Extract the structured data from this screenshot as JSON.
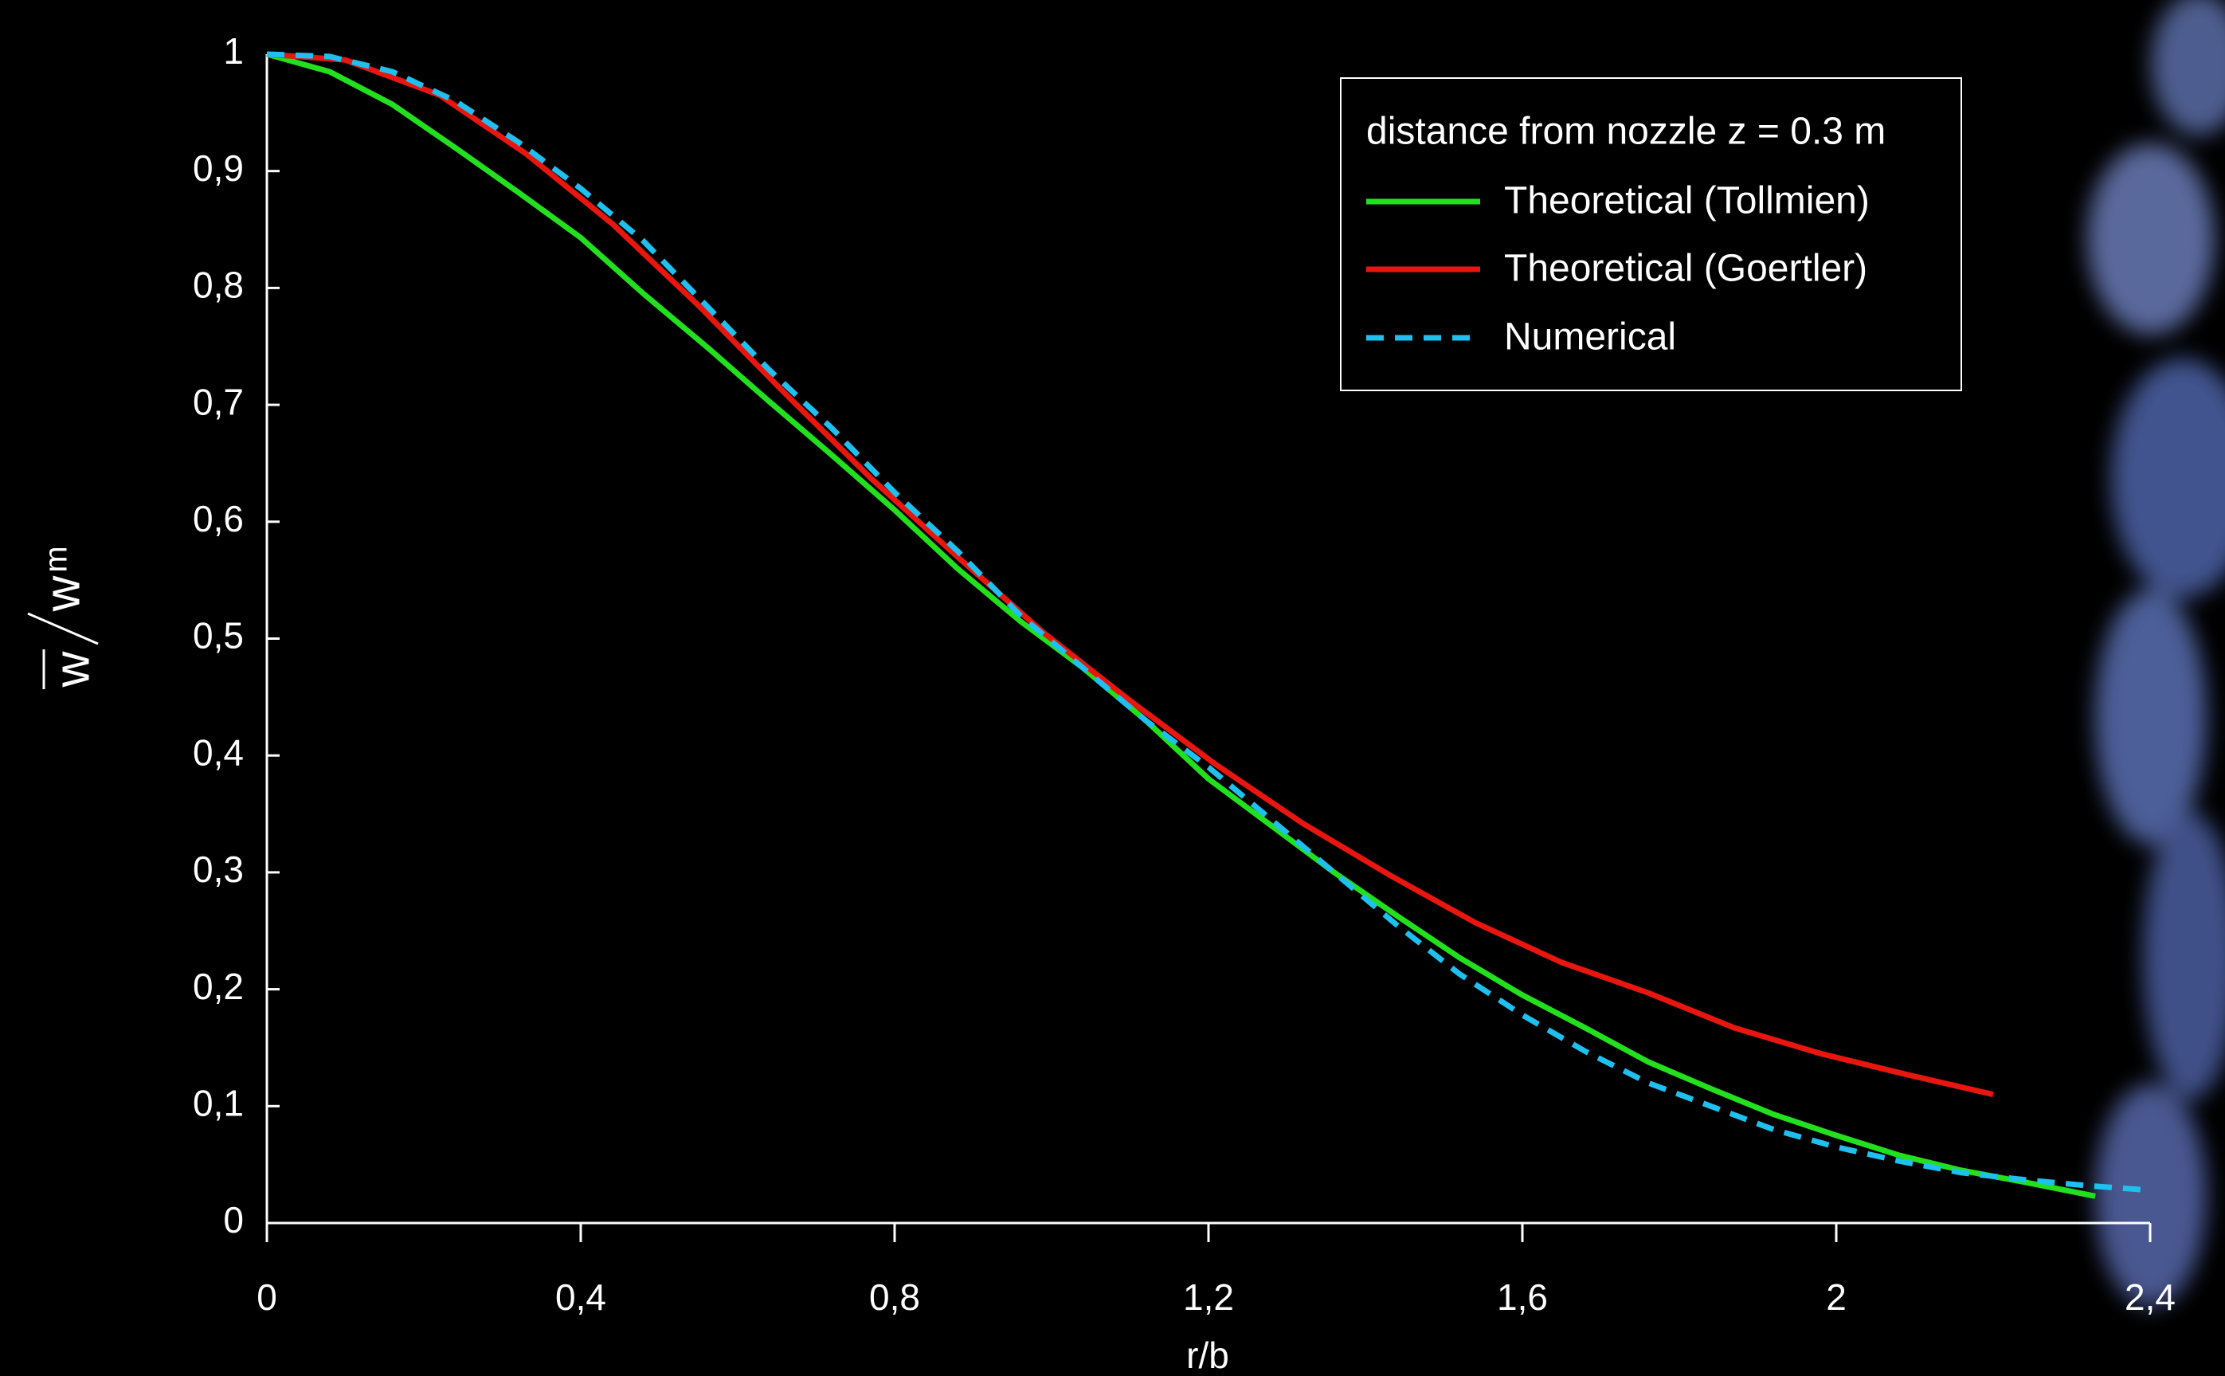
{
  "chart_data": {
    "type": "line",
    "x_label": "r/b",
    "y_label_numerator": "w",
    "y_label_denominator": "w",
    "y_label_subscript": "m",
    "legend_title": "distance from nozzle z = 0.3 m",
    "legend": "top-right",
    "grid": false,
    "xlim": [
      0,
      2.4
    ],
    "ylim": [
      0,
      1
    ],
    "xticks": [
      0,
      {
        "value": 0.4,
        "label": "0,4"
      },
      {
        "value": 0.8,
        "label": "0,8"
      },
      {
        "value": 1.2,
        "label": "1,2"
      },
      {
        "value": 1.6,
        "label": "1,6"
      },
      2,
      {
        "value": 2.4,
        "label": "2,4"
      }
    ],
    "yticks": [
      0,
      {
        "value": 0.1,
        "label": "0,1"
      },
      {
        "value": 0.2,
        "label": "0,2"
      },
      {
        "value": 0.3,
        "label": "0,3"
      },
      {
        "value": 0.4,
        "label": "0,4"
      },
      {
        "value": 0.5,
        "label": "0,5"
      },
      {
        "value": 0.6,
        "label": "0,6"
      },
      {
        "value": 0.7,
        "label": "0,7"
      },
      {
        "value": 0.8,
        "label": "0,8"
      },
      {
        "value": 0.9,
        "label": "0,9"
      },
      1
    ],
    "series": [
      {
        "name": "Theoretical (Tollmien)",
        "color": "#22e01e",
        "dash": false,
        "x": [
          0,
          0.08,
          0.16,
          0.24,
          0.32,
          0.4,
          0.48,
          0.56,
          0.64,
          0.72,
          0.8,
          0.88,
          0.96,
          1.04,
          1.12,
          1.2,
          1.28,
          1.36,
          1.44,
          1.52,
          1.6,
          1.68,
          1.76,
          1.84,
          1.92,
          2.0,
          2.08,
          2.16,
          2.24,
          2.33
        ],
        "values": [
          1,
          0.985,
          0.957,
          0.92,
          0.882,
          0.843,
          0.795,
          0.75,
          0.703,
          0.657,
          0.61,
          0.56,
          0.515,
          0.475,
          0.43,
          0.38,
          0.34,
          0.3,
          0.263,
          0.227,
          0.195,
          0.167,
          0.138,
          0.115,
          0.093,
          0.075,
          0.058,
          0.045,
          0.035,
          0.023
        ]
      },
      {
        "name": "Theoretical (Goertler)",
        "color": "#e8160f",
        "dash": false,
        "x": [
          0,
          0.1,
          0.22,
          0.33,
          0.44,
          0.55,
          0.66,
          0.77,
          0.88,
          0.99,
          1.1,
          1.21,
          1.32,
          1.43,
          1.54,
          1.65,
          1.76,
          1.87,
          1.98,
          2.09,
          2.2
        ],
        "values": [
          1,
          0.995,
          0.965,
          0.915,
          0.855,
          0.785,
          0.71,
          0.637,
          0.57,
          0.505,
          0.447,
          0.392,
          0.342,
          0.298,
          0.257,
          0.223,
          0.197,
          0.167,
          0.145,
          0.127,
          0.11
        ]
      },
      {
        "name": "Numerical",
        "color": "#1ec0ef",
        "dash": true,
        "x": [
          0,
          0.08,
          0.16,
          0.24,
          0.32,
          0.4,
          0.48,
          0.56,
          0.64,
          0.72,
          0.8,
          0.88,
          0.96,
          1.04,
          1.12,
          1.2,
          1.28,
          1.36,
          1.44,
          1.52,
          1.6,
          1.68,
          1.76,
          1.84,
          1.92,
          2.0,
          2.08,
          2.16,
          2.24,
          2.32,
          2.4
        ],
        "values": [
          1,
          0.998,
          0.985,
          0.96,
          0.925,
          0.885,
          0.84,
          0.785,
          0.73,
          0.68,
          0.625,
          0.575,
          0.52,
          0.475,
          0.43,
          0.39,
          0.345,
          0.3,
          0.255,
          0.213,
          0.178,
          0.147,
          0.12,
          0.1,
          0.08,
          0.065,
          0.053,
          0.043,
          0.037,
          0.032,
          0.028
        ]
      }
    ]
  }
}
